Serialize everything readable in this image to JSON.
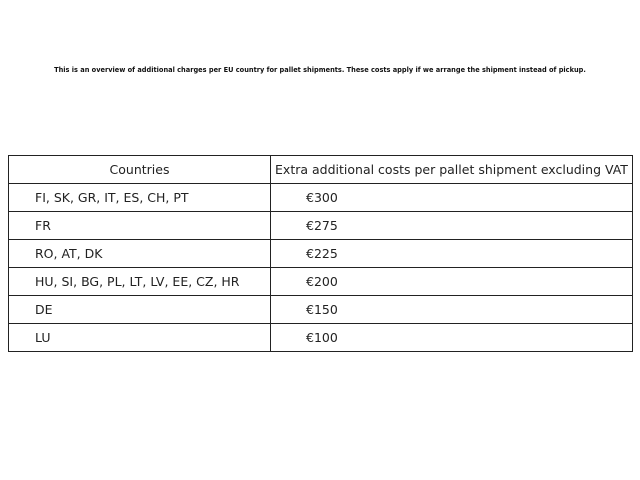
{
  "intro_text": "This is an overview of additional charges per EU country for pallet shipments. These costs apply if we arrange the shipment instead of pickup.",
  "table": {
    "headers": [
      "Countries",
      "Extra additional costs per pallet shipment excluding VAT"
    ],
    "rows": [
      {
        "countries": "FI, SK, GR, IT, ES, CH, PT",
        "cost": "€300"
      },
      {
        "countries": "FR",
        "cost": "€275"
      },
      {
        "countries": "RO, AT, DK",
        "cost": "€225"
      },
      {
        "countries": "HU, SI, BG, PL, LT, LV, EE, CZ, HR",
        "cost": "€200"
      },
      {
        "countries": "DE",
        "cost": "€150"
      },
      {
        "countries": "LU",
        "cost": "€100"
      }
    ]
  }
}
